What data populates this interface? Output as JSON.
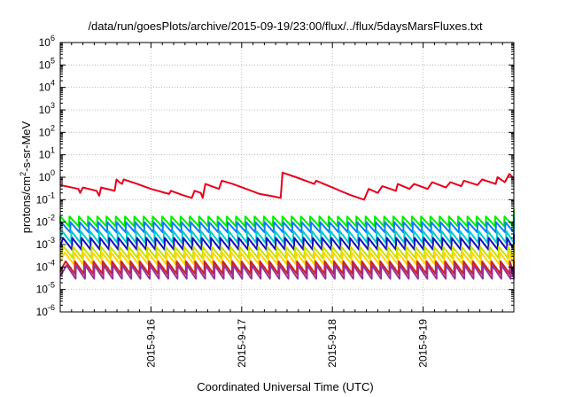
{
  "chart_data": {
    "type": "line",
    "title": "/data/run/goesPlots/archive/2015-09-19/23:00/flux/../flux/5daysMarsFluxes.txt",
    "xlabel": "Coordinated Universal Time (UTC)",
    "ylabel_parts": {
      "base": "protons/cm",
      "sup": "2",
      "rest": "-s-sr-MeV"
    },
    "ylabel": "protons/cm2-s-sr-MeV",
    "yscale": "log",
    "ylim": [
      1e-06,
      1000000.0
    ],
    "xlim": [
      "2015-09-15 00:00",
      "2015-09-20 00:00"
    ],
    "grid": true,
    "y_ticks": [
      {
        "value": 1e-06,
        "base": "10",
        "exp": "-6"
      },
      {
        "value": 1e-05,
        "base": "10",
        "exp": "-5"
      },
      {
        "value": 0.0001,
        "base": "10",
        "exp": "-4"
      },
      {
        "value": 0.001,
        "base": "10",
        "exp": "-3"
      },
      {
        "value": 0.01,
        "base": "10",
        "exp": "-2"
      },
      {
        "value": 0.1,
        "base": "10",
        "exp": "-1"
      },
      {
        "value": 1,
        "base": "10",
        "exp": "0"
      },
      {
        "value": 10.0,
        "base": "10",
        "exp": "1"
      },
      {
        "value": 100.0,
        "base": "10",
        "exp": "2"
      },
      {
        "value": 1000.0,
        "base": "10",
        "exp": "3"
      },
      {
        "value": 10000.0,
        "base": "10",
        "exp": "4"
      },
      {
        "value": 100000.0,
        "base": "10",
        "exp": "5"
      },
      {
        "value": 1000000.0,
        "base": "10",
        "exp": "6"
      }
    ],
    "x_ticks": [
      {
        "day": 1,
        "label": "2015-9-16"
      },
      {
        "day": 2,
        "label": "2015-9-17"
      },
      {
        "day": 3,
        "label": "2015-9-18"
      },
      {
        "day": 4,
        "label": "2015-9-19"
      }
    ],
    "series": [
      {
        "color": "#e8001c",
        "points": [
          [
            0.0,
            0.45
          ],
          [
            0.2,
            0.3
          ],
          [
            0.22,
            0.2
          ],
          [
            0.25,
            0.35
          ],
          [
            0.4,
            0.25
          ],
          [
            0.43,
            0.15
          ],
          [
            0.45,
            0.35
          ],
          [
            0.6,
            0.25
          ],
          [
            0.62,
            0.8
          ],
          [
            0.65,
            0.6
          ],
          [
            0.68,
            0.5
          ],
          [
            0.7,
            0.8
          ],
          [
            0.85,
            0.5
          ],
          [
            1.0,
            0.3
          ],
          [
            1.2,
            0.18
          ],
          [
            1.22,
            0.25
          ],
          [
            1.35,
            0.16
          ],
          [
            1.45,
            0.12
          ],
          [
            1.48,
            0.25
          ],
          [
            1.55,
            0.2
          ],
          [
            1.57,
            0.12
          ],
          [
            1.6,
            0.5
          ],
          [
            1.75,
            0.3
          ],
          [
            1.78,
            0.7
          ],
          [
            1.9,
            0.5
          ],
          [
            2.05,
            0.3
          ],
          [
            2.2,
            0.18
          ],
          [
            2.35,
            0.14
          ],
          [
            2.43,
            0.12
          ],
          [
            2.45,
            1.6
          ],
          [
            2.6,
            1.0
          ],
          [
            2.8,
            0.5
          ],
          [
            2.82,
            0.7
          ],
          [
            3.0,
            0.35
          ],
          [
            3.2,
            0.16
          ],
          [
            3.35,
            0.1
          ],
          [
            3.4,
            0.3
          ],
          [
            3.5,
            0.2
          ],
          [
            3.55,
            0.4
          ],
          [
            3.7,
            0.25
          ],
          [
            3.72,
            0.5
          ],
          [
            3.85,
            0.3
          ],
          [
            3.9,
            0.5
          ],
          [
            4.05,
            0.3
          ],
          [
            4.1,
            0.6
          ],
          [
            4.25,
            0.35
          ],
          [
            4.3,
            0.6
          ],
          [
            4.42,
            0.4
          ],
          [
            4.45,
            0.7
          ],
          [
            4.6,
            0.45
          ],
          [
            4.65,
            0.8
          ],
          [
            4.8,
            0.5
          ],
          [
            4.82,
            1.0
          ],
          [
            4.9,
            0.6
          ],
          [
            4.95,
            1.4
          ],
          [
            5.0,
            0.9
          ]
        ]
      },
      {
        "color": "#00ee00",
        "sawtooth": {
          "peak": 0.018,
          "trough": 0.0065,
          "period": 0.1,
          "phase": 0.0,
          "end": 0.035
        }
      },
      {
        "color": "#0b7df5",
        "sawtooth": {
          "peak": 0.01,
          "trough": 0.0035,
          "period": 0.1,
          "phase": 0.01,
          "end": 0.018
        }
      },
      {
        "color": "#00cccc",
        "sawtooth": {
          "peak": 0.004,
          "trough": 0.0012,
          "period": 0.1,
          "phase": 0.02,
          "end": 0.006
        }
      },
      {
        "color": "#1111bb",
        "sawtooth": {
          "peak": 0.002,
          "trough": 0.0006,
          "period": 0.1,
          "phase": 0.03,
          "end": 0.003
        }
      },
      {
        "color": "#c8e000",
        "sawtooth": {
          "peak": 0.0008,
          "trough": 0.00025,
          "period": 0.1,
          "phase": 0.04,
          "end": 0.001
        }
      },
      {
        "color": "#ffd700",
        "sawtooth": {
          "peak": 0.00045,
          "trough": 0.00013,
          "period": 0.1,
          "phase": 0.05,
          "end": 0.0005
        }
      },
      {
        "color": "#cc2222",
        "sawtooth": {
          "peak": 0.00018,
          "trough": 5e-05,
          "period": 0.1,
          "phase": 0.06,
          "end": 0.0002
        }
      },
      {
        "color": "#993399",
        "sawtooth": {
          "peak": 0.00012,
          "trough": 3e-05,
          "period": 0.1,
          "phase": 0.07,
          "end": 9e-05
        }
      }
    ]
  }
}
